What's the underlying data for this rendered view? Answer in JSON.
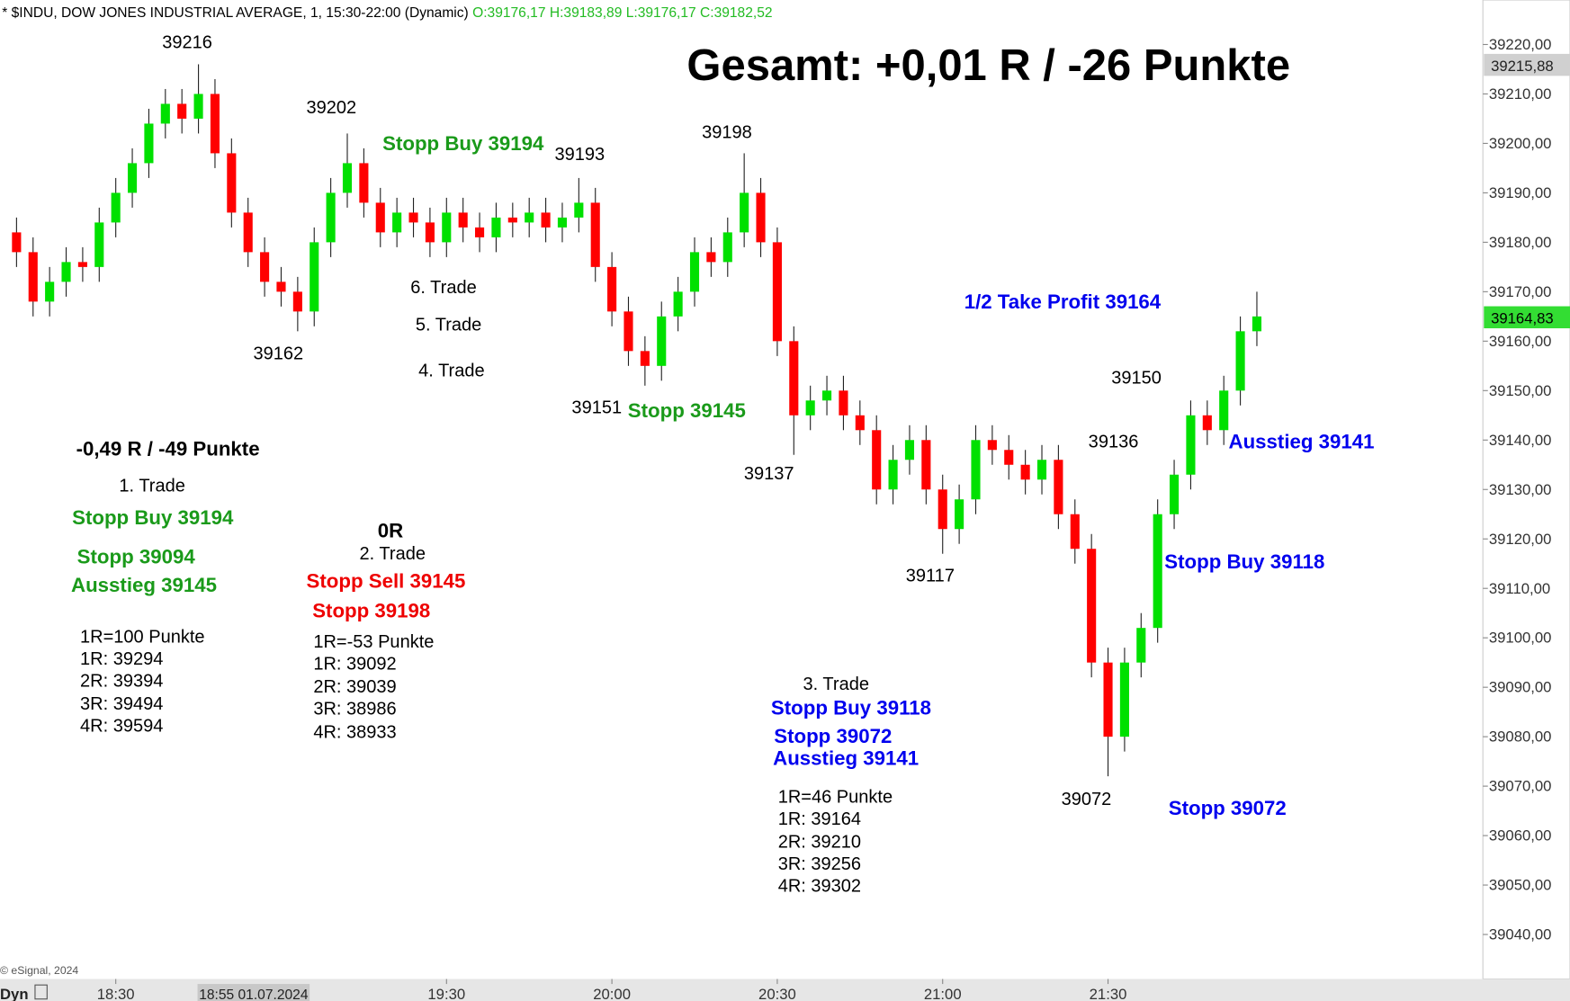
{
  "chart_data": {
    "type": "candlestick",
    "title": "* $INDU, DOW JONES INDUSTRIAL AVERAGE, 1, 15:30-22:00 (Dynamic)",
    "ohlc_header": "O:39176,17 H:39183,89 L:39176,17 C:39182,52",
    "up_color": "#00e000",
    "down_color": "#ff0000",
    "x": [
      1092,
      1095,
      1098,
      1101,
      1104,
      1107,
      1110,
      1113,
      1116,
      1119,
      1122,
      1125,
      1128,
      1131,
      1134,
      1137,
      1140,
      1143,
      1146,
      1149,
      1152,
      1155,
      1158,
      1161,
      1164,
      1167,
      1170,
      1173,
      1176,
      1179,
      1182,
      1185,
      1188,
      1191,
      1194,
      1197,
      1200,
      1203,
      1206,
      1209,
      1212,
      1215,
      1218,
      1221,
      1224,
      1227,
      1230,
      1233,
      1236,
      1239,
      1242,
      1245,
      1248,
      1251,
      1254,
      1257,
      1260,
      1263,
      1266,
      1269,
      1272,
      1275,
      1278,
      1281,
      1284,
      1287,
      1290,
      1293,
      1296,
      1299,
      1302,
      1305,
      1308,
      1311,
      1314,
      1317
    ],
    "open": [
      39182,
      39178,
      39168,
      39172,
      39176,
      39175,
      39184,
      39190,
      39196,
      39204,
      39208,
      39205,
      39210,
      39198,
      39186,
      39178,
      39172,
      39170,
      39166,
      39180,
      39190,
      39196,
      39188,
      39182,
      39186,
      39184,
      39180,
      39186,
      39183,
      39181,
      39185,
      39184,
      39186,
      39183,
      39185,
      39188,
      39175,
      39166,
      39158,
      39155,
      39165,
      39170,
      39178,
      39176,
      39182,
      39190,
      39180,
      39160,
      39145,
      39148,
      39150,
      39145,
      39142,
      39130,
      39136,
      39140,
      39130,
      39122,
      39128,
      39140,
      39138,
      39135,
      39132,
      39136,
      39125,
      39118,
      39095,
      39080,
      39095,
      39102,
      39125,
      39133,
      39145,
      39142,
      39150,
      39162
    ],
    "high": [
      39185,
      39181,
      39175,
      39179,
      39179,
      39187,
      39193,
      39199,
      39207,
      39211,
      39211,
      39216,
      39213,
      39201,
      39189,
      39181,
      39175,
      39173,
      39183,
      39193,
      39202,
      39199,
      39191,
      39189,
      39189,
      39187,
      39189,
      39189,
      39186,
      39188,
      39188,
      39189,
      39189,
      39188,
      39193,
      39191,
      39178,
      39169,
      39161,
      39168,
      39173,
      39181,
      39181,
      39185,
      39198,
      39193,
      39183,
      39163,
      39151,
      39153,
      39153,
      39148,
      39145,
      39139,
      39143,
      39143,
      39133,
      39131,
      39143,
      39143,
      39141,
      39138,
      39139,
      39139,
      39128,
      39121,
      39098,
      39098,
      39105,
      39128,
      39136,
      39148,
      39148,
      39153,
      39165,
      39170
    ],
    "low": [
      39175,
      39165,
      39165,
      39169,
      39172,
      39172,
      39181,
      39187,
      39193,
      39201,
      39202,
      39202,
      39195,
      39183,
      39175,
      39169,
      39167,
      39162,
      39163,
      39177,
      39187,
      39185,
      39179,
      39179,
      39181,
      39177,
      39177,
      39180,
      39178,
      39178,
      39181,
      39181,
      39180,
      39180,
      39182,
      39172,
      39163,
      39155,
      39151,
      39152,
      39162,
      39167,
      39173,
      39173,
      39179,
      39177,
      39157,
      39137,
      39142,
      39145,
      39142,
      39139,
      39127,
      39127,
      39133,
      39127,
      39117,
      39119,
      39125,
      39135,
      39132,
      39129,
      39129,
      39122,
      39115,
      39092,
      39072,
      39077,
      39092,
      39099,
      39122,
      39130,
      39139,
      39139,
      39147,
      39159
    ],
    "close": [
      39178,
      39168,
      39172,
      39176,
      39175,
      39184,
      39190,
      39196,
      39204,
      39208,
      39205,
      39210,
      39198,
      39186,
      39178,
      39172,
      39170,
      39166,
      39180,
      39190,
      39196,
      39188,
      39182,
      39186,
      39184,
      39180,
      39186,
      39183,
      39181,
      39185,
      39184,
      39186,
      39183,
      39185,
      39188,
      39175,
      39166,
      39158,
      39155,
      39165,
      39170,
      39178,
      39176,
      39182,
      39190,
      39180,
      39160,
      39145,
      39148,
      39150,
      39145,
      39142,
      39130,
      39136,
      39140,
      39130,
      39122,
      39128,
      39140,
      39138,
      39135,
      39132,
      39136,
      39125,
      39118,
      39095,
      39080,
      39095,
      39102,
      39125,
      39133,
      39145,
      39142,
      39150,
      39162,
      39165
    ],
    "xlim": [
      1089,
      1358
    ],
    "xticks": [
      {
        "value": 1110,
        "label": "18:30"
      },
      {
        "value": 1170,
        "label": "19:30"
      },
      {
        "value": 1200,
        "label": "20:00"
      },
      {
        "value": 1230,
        "label": "20:30"
      },
      {
        "value": 1260,
        "label": "21:00"
      },
      {
        "value": 1290,
        "label": "21:30"
      }
    ],
    "cursor": {
      "value": 1135,
      "label": "18:55 01.07.2024"
    },
    "ylim": [
      39031,
      39229
    ],
    "yticks": [
      {
        "value": 39040,
        "label": "39040,00"
      },
      {
        "value": 39050,
        "label": "39050,00"
      },
      {
        "value": 39060,
        "label": "39060,00"
      },
      {
        "value": 39070,
        "label": "39070,00"
      },
      {
        "value": 39080,
        "label": "39080,00"
      },
      {
        "value": 39090,
        "label": "39090,00"
      },
      {
        "value": 39100,
        "label": "39100,00"
      },
      {
        "value": 39110,
        "label": "39110,00"
      },
      {
        "value": 39120,
        "label": "39120,00"
      },
      {
        "value": 39130,
        "label": "39130,00"
      },
      {
        "value": 39140,
        "label": "39140,00"
      },
      {
        "value": 39150,
        "label": "39150,00"
      },
      {
        "value": 39160,
        "label": "39160,00"
      },
      {
        "value": 39170,
        "label": "39170,00"
      },
      {
        "value": 39180,
        "label": "39180,00"
      },
      {
        "value": 39190,
        "label": "39190,00"
      },
      {
        "value": 39200,
        "label": "39200,00"
      },
      {
        "value": 39210,
        "label": "39210,00"
      },
      {
        "value": 39220,
        "label": "39220,00"
      }
    ],
    "high_marker": {
      "value": 39215.88,
      "label": "39215,88"
    },
    "last_price": {
      "value": 39164.83,
      "label": "39164,83"
    },
    "copyright": "© eSignal, 2024",
    "mode": "Dyn",
    "annotations": [
      "Gesamt: +0,01 R / -26 Punkte",
      "39216",
      "39202",
      "Stopp Buy 39194",
      "39193",
      "39198",
      "6. Trade",
      "5. Trade",
      "4. Trade",
      "39162",
      "39151",
      "Stopp 39145",
      "39137",
      "-0,49 R / -49 Punkte",
      "1. Trade",
      "Stopp Buy 39194",
      "Stopp 39094",
      "Ausstieg 39145",
      "1R=100 Punkte",
      "1R: 39294",
      "2R: 39394",
      "3R: 39494",
      "4R: 39594",
      "0R",
      "2. Trade",
      "Stopp Sell 39145",
      "Stopp 39198",
      "1R=-53 Punkte",
      "1R: 39092",
      "2R: 39039",
      "3R: 38986",
      "4R: 38933",
      "39117",
      "3. Trade",
      "Stopp Buy 39118",
      "Stopp 39072",
      "Ausstieg 39141",
      "1R=46 Punkte",
      "1R: 39164",
      "2R: 39210",
      "3R: 39256",
      "4R: 39302",
      "39072",
      "1/2 Take Profit 39164",
      "39150",
      "39136",
      "Ausstieg 39141",
      "Stopp Buy 39118",
      "Stopp 39072"
    ]
  }
}
